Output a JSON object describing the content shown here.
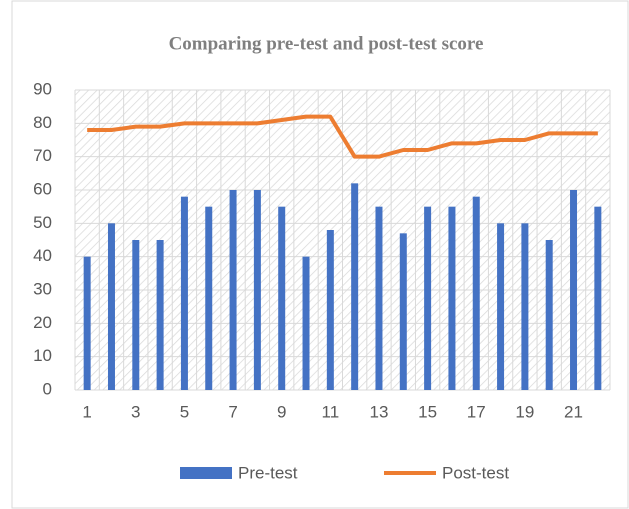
{
  "chart_data": {
    "type": "combo",
    "title": "Comparing pre-test and post-test score",
    "categories": [
      1,
      null,
      3,
      null,
      5,
      null,
      7,
      null,
      9,
      null,
      11,
      null,
      13,
      null,
      15,
      null,
      17,
      null,
      19,
      null,
      21,
      null
    ],
    "series": [
      {
        "name": "Pre-test",
        "type": "bar",
        "color": "#4472c4",
        "values": [
          40,
          50,
          45,
          45,
          58,
          55,
          60,
          60,
          55,
          40,
          48,
          62,
          55,
          47,
          55,
          55,
          58,
          50,
          50,
          45,
          60,
          55
        ]
      },
      {
        "name": "Post-test",
        "type": "line",
        "color": "#ed7d31",
        "values": [
          78,
          78,
          79,
          79,
          80,
          80,
          80,
          80,
          81,
          82,
          82,
          70,
          70,
          72,
          72,
          74,
          74,
          75,
          75,
          77,
          77,
          77
        ]
      }
    ],
    "ylim": [
      0,
      90
    ],
    "yticks": [
      0,
      10,
      20,
      30,
      40,
      50,
      60,
      70,
      80,
      90
    ],
    "grid": true,
    "legend": "bottom"
  }
}
